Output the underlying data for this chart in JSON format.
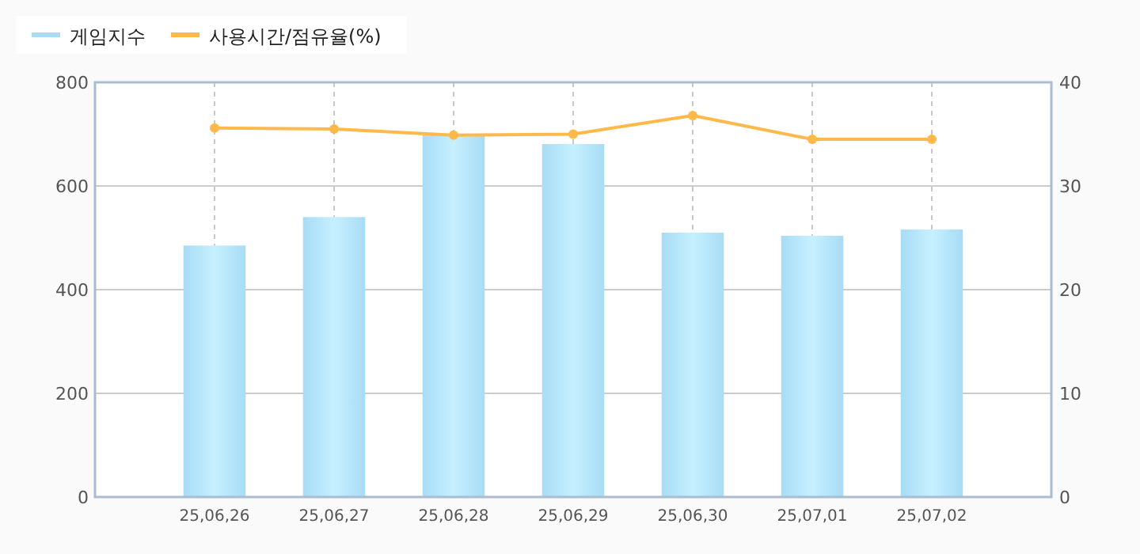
{
  "chart_data": {
    "type": "bar",
    "categories": [
      "25,06,26",
      "25,06,27",
      "25,06,28",
      "25,06,29",
      "25,06,30",
      "25,07,01",
      "25,07,02"
    ],
    "series": [
      {
        "name": "게임지수",
        "color": "#a8dcf5",
        "values": [
          485,
          540,
          699,
          681,
          510,
          504,
          516
        ]
      },
      {
        "name": "사용시간/점유율(%)",
        "type": "line",
        "axis": "y2",
        "color": "#ffb94a",
        "marker": "circle",
        "values": [
          35.6,
          35.5,
          34.9,
          35.0,
          36.8,
          34.5,
          34.5
        ]
      }
    ],
    "ylim": [
      0,
      800
    ],
    "yticks": [
      0,
      200,
      400,
      600,
      800
    ],
    "y2lim": [
      0,
      40
    ],
    "y2ticks": [
      0,
      10,
      20,
      30,
      40
    ],
    "grid": true,
    "legend": "top left"
  }
}
